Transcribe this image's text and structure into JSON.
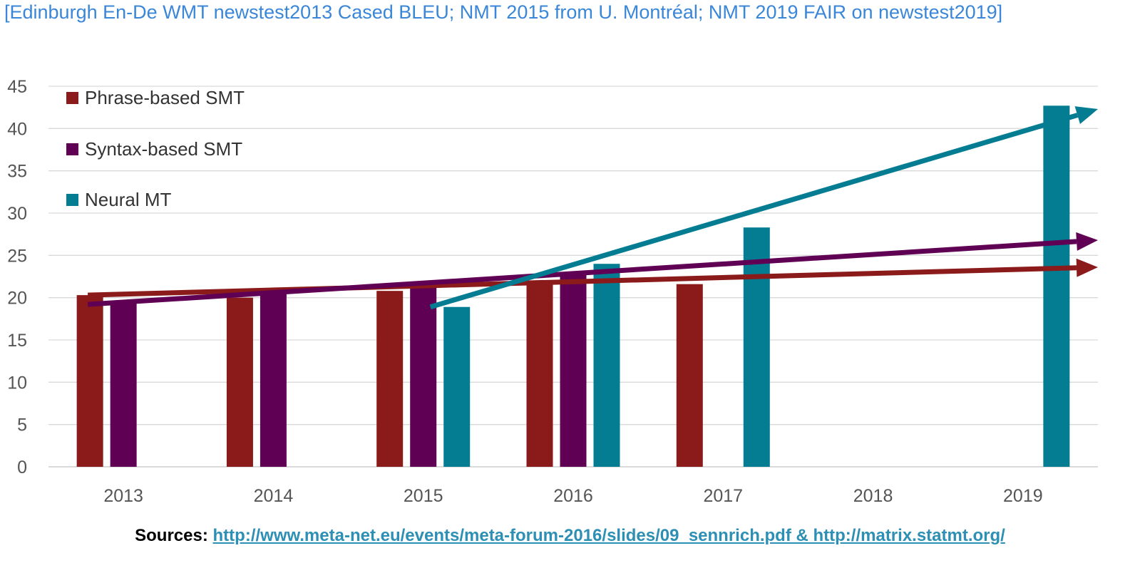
{
  "header": {
    "note": "[Edinburgh En-De WMT newstest2013 Cased BLEU; NMT 2015 from U. Montréal; NMT 2019 FAIR on newstest2019]"
  },
  "footer": {
    "sources_label": "Sources:",
    "sources_links": "http://www.meta-net.eu/events/meta-forum-2016/slides/09_sennrich.pdf & http://matrix.statmt.org/"
  },
  "chart_data": {
    "type": "bar",
    "title": "",
    "xlabel": "",
    "ylabel": "",
    "categories": [
      "2013",
      "2014",
      "2015",
      "2016",
      "2017",
      "2018",
      "2019"
    ],
    "ylim": [
      0,
      45
    ],
    "yticks": [
      0,
      5,
      10,
      15,
      20,
      25,
      30,
      35,
      40,
      45
    ],
    "grid": true,
    "legend_position": "top-left",
    "series": [
      {
        "name": "Phrase-based SMT",
        "color": "#8b1a1a",
        "values": [
          20.3,
          20.0,
          20.8,
          21.8,
          21.6,
          null,
          null
        ]
      },
      {
        "name": "Syntax-based SMT",
        "color": "#600055",
        "values": [
          19.4,
          20.5,
          21.9,
          22.9,
          null,
          null,
          null
        ]
      },
      {
        "name": "Neural MT",
        "color": "#047d92",
        "values": [
          null,
          null,
          18.9,
          24.0,
          28.3,
          null,
          42.7
        ]
      }
    ],
    "trend_arrows": [
      {
        "series": "Phrase-based SMT",
        "color": "#8b1a1a",
        "from": {
          "x": 2013,
          "y": 20.3
        },
        "to": {
          "x": 2019.5,
          "y": 23.6
        }
      },
      {
        "series": "Syntax-based SMT",
        "color": "#600055",
        "from": {
          "x": 2013,
          "y": 19.2
        },
        "to": {
          "x": 2019.5,
          "y": 26.8
        }
      },
      {
        "series": "Neural MT",
        "color": "#047d92",
        "from": {
          "x": 2015,
          "y": 18.9
        },
        "to": {
          "x": 2019.5,
          "y": 42.3
        }
      }
    ]
  }
}
